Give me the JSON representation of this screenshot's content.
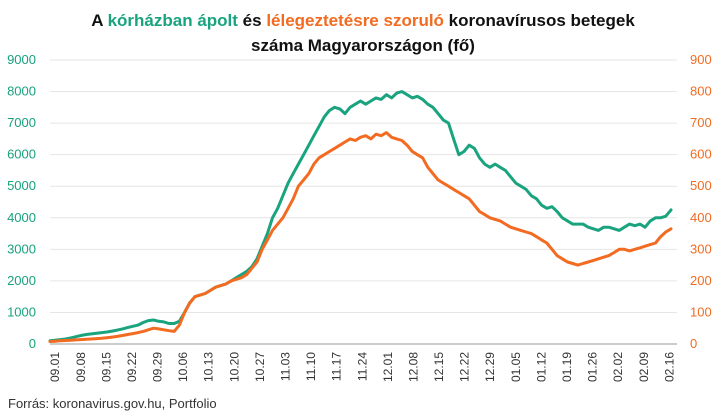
{
  "title": {
    "line1": {
      "prefix": "A ",
      "series1": "kórházban ápolt",
      "mid": " és ",
      "series2": "lélegeztetésre szoruló",
      "suffix": " koronavírusos betegek"
    },
    "line2": "száma Magyarországon  (fő)"
  },
  "source": "Forrás: koronavirus.gov.hu, Portfolio",
  "colors": {
    "hospital": "#1aa37f",
    "ventilator": "#f26b21"
  },
  "chart_data": {
    "type": "line",
    "x_labels": [
      "09.01",
      "09.08",
      "09.15",
      "09.22",
      "09.29",
      "10.06",
      "10.13",
      "10.20",
      "10.27",
      "11.03",
      "11.10",
      "11.17",
      "11.24",
      "12.01",
      "12.08",
      "12.15",
      "12.22",
      "12.29",
      "01.05",
      "01.12",
      "01.19",
      "01.26",
      "02.02",
      "02.09",
      "02.16"
    ],
    "left_axis": {
      "min": 0,
      "max": 9000,
      "ticks": [
        "0",
        "1000",
        "2000",
        "3000",
        "4000",
        "5000",
        "6000",
        "7000",
        "8000",
        "9000"
      ]
    },
    "right_axis": {
      "min": 0,
      "max": 900,
      "ticks": [
        "0",
        "100",
        "200",
        "300",
        "400",
        "500",
        "600",
        "700",
        "800",
        "900"
      ]
    },
    "series": [
      {
        "axis": "left",
        "values": [
          100,
          120,
          140,
          160,
          190,
          230,
          270,
          300,
          320,
          340,
          360,
          380,
          410,
          440,
          480,
          520,
          560,
          600,
          680,
          740,
          760,
          720,
          700,
          650,
          650,
          720,
          1000,
          1300,
          1500,
          1550,
          1600,
          1700,
          1800,
          1850,
          1900,
          2000,
          2100,
          2200,
          2300,
          2450,
          2700,
          3100,
          3500,
          4000,
          4300,
          4700,
          5100,
          5400,
          5700,
          6000,
          6300,
          6600,
          6900,
          7200,
          7400,
          7500,
          7450,
          7300,
          7500,
          7600,
          7700,
          7600,
          7700,
          7800,
          7750,
          7900,
          7800,
          7950,
          8000,
          7900,
          7800,
          7850,
          7750,
          7600,
          7500,
          7300,
          7100,
          7000,
          6500,
          6000,
          6100,
          6300,
          6200,
          5900,
          5700,
          5600,
          5700,
          5600,
          5500,
          5300,
          5100,
          5000,
          4900,
          4700,
          4600,
          4400,
          4300,
          4350,
          4200,
          4000,
          3900,
          3800,
          3800,
          3800,
          3700,
          3650,
          3600,
          3700,
          3700,
          3650,
          3600,
          3700,
          3800,
          3750,
          3800,
          3700,
          3900,
          4000,
          4000,
          4050,
          4250
        ]
      },
      {
        "axis": "right",
        "values": [
          8,
          9,
          10,
          11,
          12,
          13,
          14,
          15,
          16,
          17,
          18,
          20,
          22,
          24,
          27,
          30,
          33,
          36,
          40,
          45,
          50,
          48,
          45,
          42,
          40,
          60,
          100,
          130,
          150,
          155,
          160,
          170,
          180,
          185,
          190,
          200,
          205,
          210,
          220,
          240,
          260,
          300,
          330,
          360,
          380,
          400,
          430,
          460,
          500,
          520,
          540,
          570,
          590,
          600,
          610,
          620,
          630,
          640,
          650,
          645,
          655,
          660,
          650,
          665,
          660,
          670,
          655,
          650,
          645,
          630,
          610,
          600,
          590,
          560,
          540,
          520,
          510,
          500,
          490,
          480,
          470,
          460,
          440,
          420,
          410,
          400,
          395,
          390,
          380,
          370,
          365,
          360,
          355,
          350,
          340,
          330,
          320,
          300,
          280,
          270,
          260,
          255,
          250,
          255,
          260,
          265,
          270,
          275,
          280,
          290,
          300,
          300,
          295,
          300,
          305,
          310,
          315,
          320,
          340,
          355,
          365
        ]
      }
    ]
  }
}
